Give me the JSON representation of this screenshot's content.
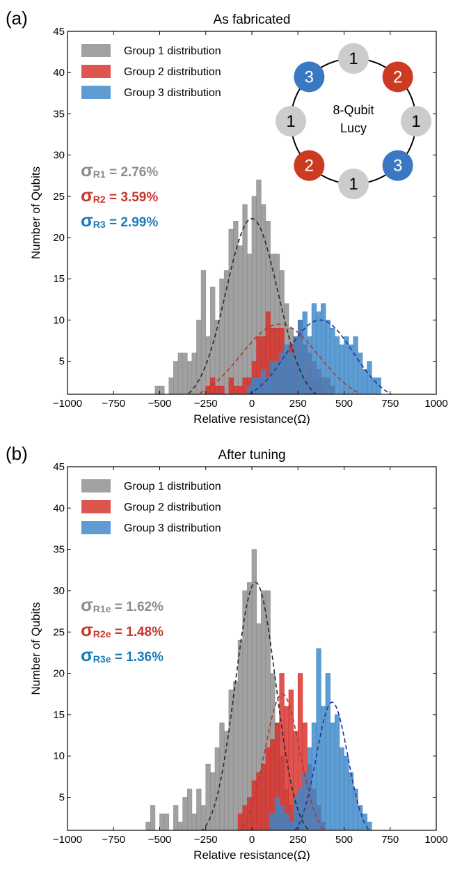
{
  "chart_data": [
    {
      "type": "bar",
      "panel_label": "(a)",
      "title": "As fabricated",
      "xlabel": "Relative resistance(Ω)",
      "ylabel": "Number of Qubits",
      "xlim": [
        -1000,
        1000
      ],
      "ylim": [
        1,
        45
      ],
      "xticks": [
        "−1000",
        "−750",
        "−500",
        "−250",
        "0",
        "250",
        "500",
        "750",
        "1000"
      ],
      "xtick_values": [
        -1000,
        -750,
        -500,
        -250,
        0,
        250,
        500,
        750,
        1000
      ],
      "yticks": [
        "5",
        "10",
        "15",
        "20",
        "25",
        "30",
        "35",
        "40",
        "45"
      ],
      "ytick_values": [
        5,
        10,
        15,
        20,
        25,
        30,
        35,
        40,
        45
      ],
      "legend": [
        "Group 1 distribution",
        "Group 2 distribution",
        "Group 3 distribution"
      ],
      "series": [
        {
          "name": "Group 1 distribution",
          "color": "#8c8c8c",
          "bin_start": -525,
          "bin_width": 25,
          "values": [
            2,
            2,
            1,
            3,
            5,
            6,
            6,
            5,
            6,
            10,
            16,
            8,
            14,
            10,
            15,
            16,
            21,
            22,
            19,
            24,
            18,
            25,
            27,
            24,
            22,
            18,
            18,
            16,
            12,
            9,
            5,
            6,
            3,
            4,
            3,
            3,
            2,
            1
          ]
        },
        {
          "name": "Group 2 distribution",
          "color": "#d7302a",
          "bin_start": -275,
          "bin_width": 25,
          "values": [
            0,
            2,
            3,
            2,
            2,
            1,
            3,
            2,
            2,
            3,
            3,
            5,
            8,
            8,
            11,
            9,
            9,
            9,
            6,
            7,
            8,
            10,
            7,
            6,
            5,
            4,
            3,
            3,
            2,
            1,
            1
          ]
        },
        {
          "name": "Group 3 distribution",
          "color": "#3a86c8",
          "bin_start": -125,
          "bin_width": 25,
          "values": [
            1,
            0,
            0,
            1,
            2,
            3,
            3,
            4,
            3,
            5,
            5,
            6,
            7,
            6,
            8,
            10,
            11,
            8,
            12,
            11,
            12,
            10,
            9,
            8,
            7,
            8,
            7,
            8,
            6,
            4,
            5,
            3,
            3
          ]
        }
      ],
      "fits": [
        {
          "name": "Group 1 fit",
          "color": "#2f2f2f",
          "mean": 0,
          "sigma": 140,
          "peak": 22.3
        },
        {
          "name": "Group 2 fit",
          "color": "#b13a32",
          "mean": 150,
          "sigma": 210,
          "peak": 9.5
        },
        {
          "name": "Group 3 fit",
          "color": "#24389a",
          "mean": 370,
          "sigma": 180,
          "peak": 10
        }
      ],
      "annotations": [
        {
          "symbol": "σ",
          "sub": "R1",
          "text": " = 2.76%",
          "color": "#8c8c8c"
        },
        {
          "symbol": "σ",
          "sub": "R2",
          "text": " = 3.59%",
          "color": "#c8372c"
        },
        {
          "symbol": "σ",
          "sub": "R3",
          "text": " = 2.99%",
          "color": "#1a7cb8"
        }
      ],
      "inset": {
        "center_line1": "8-Qubit",
        "center_line2": "Lucy",
        "nodes": [
          {
            "label": "1",
            "group": 1
          },
          {
            "label": "2",
            "group": 2
          },
          {
            "label": "1",
            "group": 1
          },
          {
            "label": "3",
            "group": 3
          },
          {
            "label": "1",
            "group": 1
          },
          {
            "label": "2",
            "group": 2
          },
          {
            "label": "1",
            "group": 1
          },
          {
            "label": "3",
            "group": 3
          }
        ],
        "group_colors": {
          "1": "#cccccc",
          "2": "#cc3a22",
          "3": "#3b78c4"
        }
      }
    },
    {
      "type": "bar",
      "panel_label": "(b)",
      "title": "After tuning",
      "xlabel": "Relative resistance(Ω)",
      "ylabel": "Number of Qubits",
      "xlim": [
        -1000,
        1000
      ],
      "ylim": [
        1,
        45
      ],
      "xticks": [
        "−1000",
        "−750",
        "−500",
        "−250",
        "0",
        "250",
        "500",
        "750",
        "1000"
      ],
      "xtick_values": [
        -1000,
        -750,
        -500,
        -250,
        0,
        250,
        500,
        750,
        1000
      ],
      "yticks": [
        "5",
        "10",
        "15",
        "20",
        "25",
        "30",
        "35",
        "40",
        "45"
      ],
      "ytick_values": [
        5,
        10,
        15,
        20,
        25,
        30,
        35,
        40,
        45
      ],
      "legend": [
        "Group 1 distribution",
        "Group 2 distribution",
        "Group 3 distribution"
      ],
      "series": [
        {
          "name": "Group 1 distribution",
          "color": "#8c8c8c",
          "bin_start": -575,
          "bin_width": 25,
          "values": [
            2,
            4,
            1,
            3,
            3,
            1,
            4,
            2,
            5,
            6,
            3,
            6,
            4,
            9,
            8,
            11,
            14,
            13,
            18,
            19,
            24,
            30,
            31,
            35,
            26,
            30,
            30,
            20,
            14,
            10,
            6,
            4,
            3,
            2,
            1
          ]
        },
        {
          "name": "Group 2 distribution",
          "color": "#d7302a",
          "bin_start": -75,
          "bin_width": 25,
          "values": [
            3,
            4,
            5,
            7,
            8,
            9,
            11,
            12,
            14,
            20,
            16,
            18,
            13,
            20,
            14,
            9,
            6,
            4,
            2,
            1
          ]
        },
        {
          "name": "Group 3 distribution",
          "color": "#3a86c8",
          "bin_start": 100,
          "bin_width": 25,
          "values": [
            3,
            5,
            4,
            3,
            2,
            5,
            6,
            8,
            11,
            14,
            23,
            16,
            20,
            14,
            15,
            11,
            10,
            8,
            6,
            4,
            3,
            2,
            1
          ]
        }
      ],
      "fits": [
        {
          "name": "Group 1 fit",
          "color": "#2f2f2f",
          "mean": 20,
          "sigma": 110,
          "peak": 31
        },
        {
          "name": "Group 2 fit",
          "color": "#b13a32",
          "mean": 165,
          "sigma": 95,
          "peak": 17.5
        },
        {
          "name": "Group 3 fit",
          "color": "#24389a",
          "mean": 435,
          "sigma": 85,
          "peak": 16.5
        }
      ],
      "annotations": [
        {
          "symbol": "σ",
          "sub": "R1e",
          "text": " = 1.62%",
          "color": "#8c8c8c"
        },
        {
          "symbol": "σ",
          "sub": "R2e",
          "text": " = 1.48%",
          "color": "#c8372c"
        },
        {
          "symbol": "σ",
          "sub": "R3e",
          "text": " = 1.36%",
          "color": "#1a7cb8"
        }
      ]
    }
  ]
}
